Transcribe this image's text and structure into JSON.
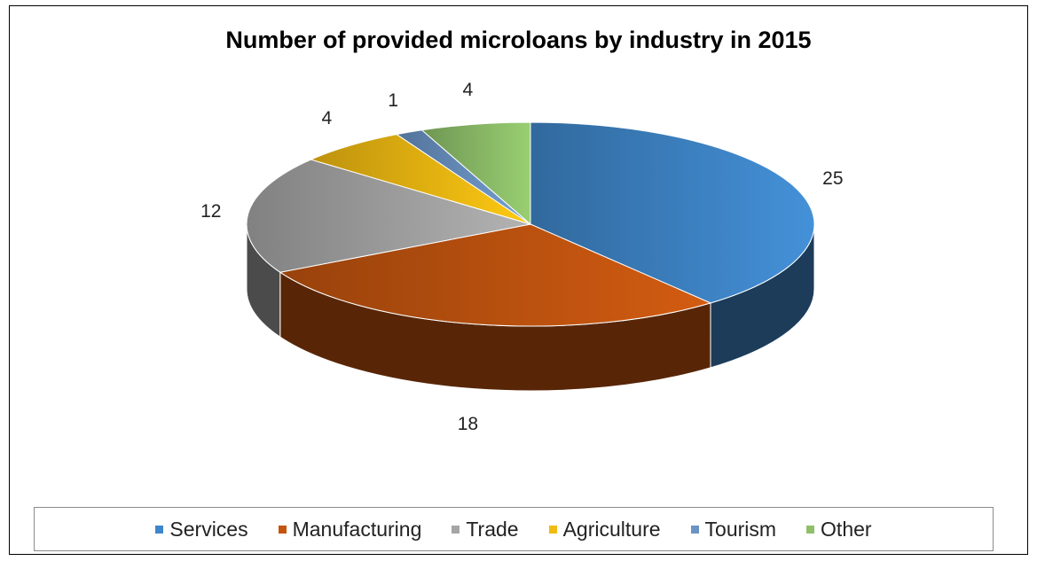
{
  "chart_data": {
    "type": "pie",
    "title": "Number of provided microloans by industry in 2015",
    "categories": [
      "Services",
      "Manufacturing",
      "Trade",
      "Agriculture",
      "Tourism",
      "Other"
    ],
    "values": [
      25,
      18,
      12,
      4,
      1,
      4
    ],
    "colors": [
      "#3f86c9",
      "#c35510",
      "#a6a6a6",
      "#f2bb12",
      "#6b94c4",
      "#8ec06a"
    ],
    "legend": "bottom",
    "style": "3d-exploded-none"
  }
}
